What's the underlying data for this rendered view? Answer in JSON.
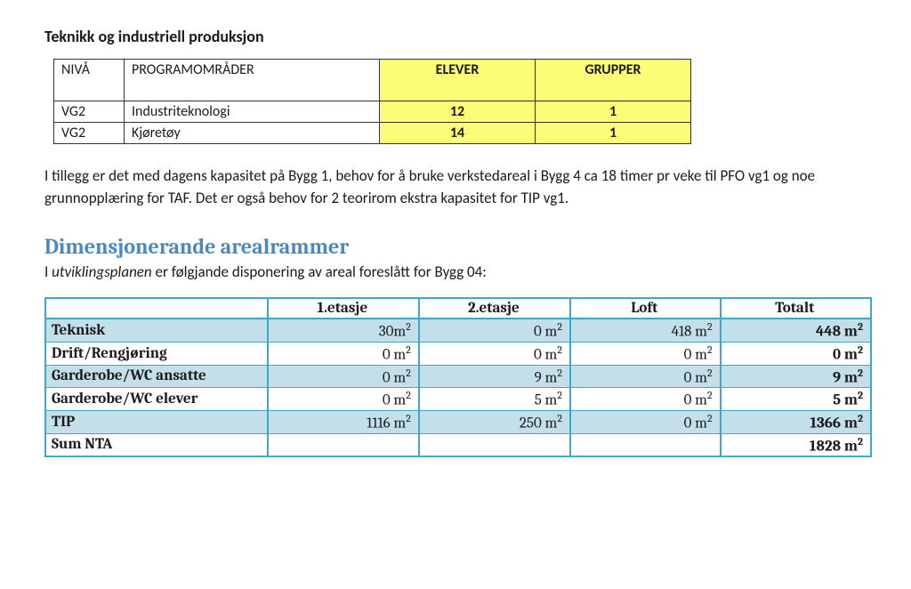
{
  "colors": {
    "yellow": "#fbfd77",
    "blue_heading": "#4a89bf",
    "areal_border": "#3ea7c4",
    "areal_shade": "#c3e0ea",
    "text": "#1a1a1a"
  },
  "title1": "Teknikk og industriell produksjon",
  "prog_table": {
    "headers": {
      "niva": "NIVÅ",
      "omrader": "PROGRAMOMRÅDER",
      "elever": "ELEVER",
      "grupper": "GRUPPER"
    },
    "rows": [
      {
        "niva": "VG2",
        "omrade": "Industriteknologi",
        "elever": "12",
        "grupper": "1"
      },
      {
        "niva": "VG2",
        "omrade": "Kjøretøy",
        "elever": "14",
        "grupper": "1"
      }
    ]
  },
  "paragraph": "I tillegg er det med dagens kapasitet på Bygg 1, behov for å bruke verkstedareal i Bygg 4 ca 18 timer pr veke til PFO vg1 og noe grunnopplæring for TAF. Det er også behov for 2 teorirom ekstra kapasitet for TIP vg1.",
  "title2": "Dimensjonerande arealrammer",
  "intro_pre": "I ",
  "intro_em": "utviklingsplanen",
  "intro_post": " er følgjande disponering av areal foreslått for Bygg 04:",
  "areal_table": {
    "col_headers": [
      "1.etasje",
      "2.etasje",
      "Loft",
      "Totalt"
    ],
    "rows": [
      {
        "label": "Teknisk",
        "vals": [
          "30m",
          "0 m",
          "418 m",
          "448 m"
        ],
        "shade": true,
        "bold_total": true
      },
      {
        "label": "Drift/Rengjøring",
        "vals": [
          "0 m",
          "0 m",
          "0 m",
          "0 m"
        ],
        "shade": false,
        "bold_total": true
      },
      {
        "label": "Garderobe/WC ansatte",
        "vals": [
          "0 m",
          "9 m",
          "0 m",
          "9 m"
        ],
        "shade": true,
        "bold_total": true
      },
      {
        "label": "Garderobe/WC elever",
        "vals": [
          "0 m",
          "5 m",
          "0 m",
          "5 m"
        ],
        "shade": false,
        "bold_total": true
      },
      {
        "label": "TIP",
        "vals": [
          "1116 m",
          "250 m",
          "0 m",
          "1366 m"
        ],
        "shade": true,
        "bold_total": true
      },
      {
        "label": "Sum NTA",
        "vals": [
          "",
          "",
          "",
          "1828 m"
        ],
        "shade": false,
        "bold_total": true
      }
    ]
  }
}
